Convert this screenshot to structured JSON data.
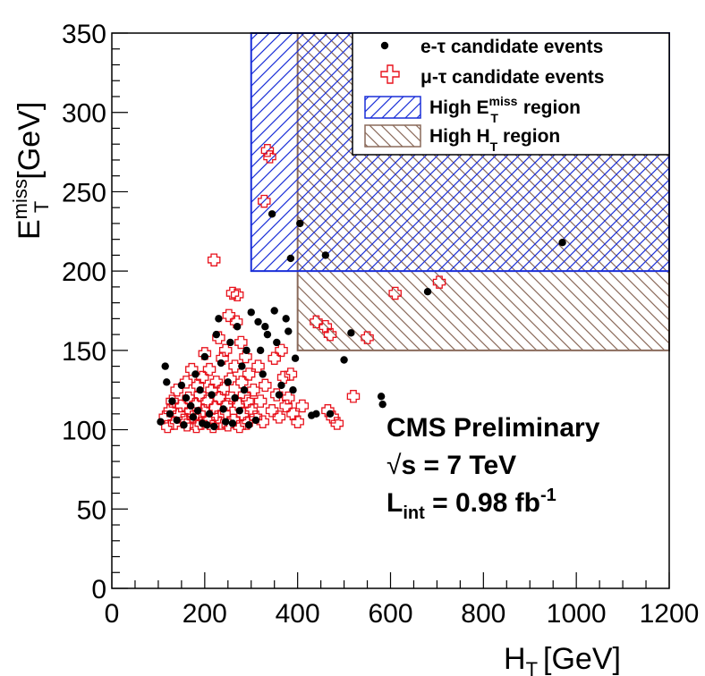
{
  "chart_data": {
    "type": "scatter",
    "title": "",
    "xlabel": {
      "main": "H",
      "sub": "T",
      "unit": "[GeV]"
    },
    "ylabel": {
      "main": "E",
      "sup": "miss",
      "sub": "T",
      "unit": "[GeV]"
    },
    "xlim": [
      0,
      1200
    ],
    "ylim": [
      0,
      350
    ],
    "x_ticks": [
      0,
      200,
      400,
      600,
      800,
      1000,
      1200
    ],
    "y_ticks": [
      0,
      50,
      100,
      150,
      200,
      250,
      300,
      350
    ],
    "x_tick_labels": [
      "0",
      "200",
      "400",
      "600",
      "800",
      "1000",
      "1200"
    ],
    "y_tick_labels": [
      "0",
      "50",
      "100",
      "150",
      "200",
      "250",
      "300",
      "350"
    ],
    "legend_position": "top-right",
    "regions": [
      {
        "name": "High MET region",
        "x": [
          300,
          1200
        ],
        "y": [
          200,
          350
        ],
        "color": "#1a2fd8",
        "hatch": "forward"
      },
      {
        "name": "High HT region",
        "x": [
          400,
          1200
        ],
        "y": [
          150,
          350
        ],
        "color": "#8a6a5a",
        "hatch": "backward"
      }
    ],
    "series": [
      {
        "name": "e-tau candidate events",
        "marker": "dot",
        "color": "#000000",
        "points": [
          [
            105,
            105
          ],
          [
            115,
            140
          ],
          [
            118,
            130
          ],
          [
            125,
            110
          ],
          [
            130,
            118
          ],
          [
            140,
            106
          ],
          [
            150,
            128
          ],
          [
            155,
            103
          ],
          [
            160,
            120
          ],
          [
            170,
            115
          ],
          [
            175,
            108
          ],
          [
            180,
            135
          ],
          [
            185,
            112
          ],
          [
            190,
            125
          ],
          [
            195,
            104
          ],
          [
            200,
            146
          ],
          [
            205,
            103
          ],
          [
            210,
            110
          ],
          [
            215,
            122
          ],
          [
            220,
            102
          ],
          [
            225,
            160
          ],
          [
            230,
            170
          ],
          [
            235,
            142
          ],
          [
            240,
            113
          ],
          [
            245,
            105
          ],
          [
            250,
            130
          ],
          [
            255,
            155
          ],
          [
            260,
            104
          ],
          [
            265,
            120
          ],
          [
            270,
            165
          ],
          [
            275,
            112
          ],
          [
            280,
            140
          ],
          [
            285,
            125
          ],
          [
            290,
            150
          ],
          [
            295,
            103
          ],
          [
            300,
            174
          ],
          [
            310,
            106
          ],
          [
            315,
            168
          ],
          [
            320,
            150
          ],
          [
            325,
            135
          ],
          [
            330,
            165
          ],
          [
            335,
            160
          ],
          [
            345,
            236
          ],
          [
            350,
            175
          ],
          [
            355,
            155
          ],
          [
            360,
            122
          ],
          [
            365,
            128
          ],
          [
            375,
            170
          ],
          [
            380,
            162
          ],
          [
            385,
            208
          ],
          [
            390,
            125
          ],
          [
            395,
            145
          ],
          [
            405,
            230
          ],
          [
            430,
            109
          ],
          [
            440,
            110
          ],
          [
            460,
            210
          ],
          [
            470,
            110
          ],
          [
            500,
            144
          ],
          [
            515,
            161
          ],
          [
            580,
            121
          ],
          [
            583,
            116
          ],
          [
            680,
            187
          ],
          [
            970,
            218
          ]
        ]
      },
      {
        "name": "mu-tau candidate events",
        "marker": "open-cross",
        "color": "#e8121c",
        "points": [
          [
            115,
            108
          ],
          [
            120,
            102
          ],
          [
            125,
            112
          ],
          [
            130,
            118
          ],
          [
            135,
            104
          ],
          [
            140,
            125
          ],
          [
            145,
            110
          ],
          [
            150,
            115
          ],
          [
            155,
            106
          ],
          [
            160,
            130
          ],
          [
            162,
            103
          ],
          [
            165,
            120
          ],
          [
            170,
            112
          ],
          [
            172,
            138
          ],
          [
            175,
            108
          ],
          [
            180,
            116
          ],
          [
            182,
            102
          ],
          [
            185,
            128
          ],
          [
            188,
            110
          ],
          [
            190,
            122
          ],
          [
            192,
            104
          ],
          [
            195,
            133
          ],
          [
            198,
            112
          ],
          [
            200,
            148
          ],
          [
            205,
            118
          ],
          [
            208,
            106
          ],
          [
            210,
            138
          ],
          [
            215,
            125
          ],
          [
            218,
            102
          ],
          [
            220,
            207
          ],
          [
            222,
            114
          ],
          [
            225,
            130
          ],
          [
            228,
            108
          ],
          [
            230,
            158
          ],
          [
            232,
            120
          ],
          [
            235,
            104
          ],
          [
            238,
            145
          ],
          [
            240,
            126
          ],
          [
            242,
            110
          ],
          [
            245,
            150
          ],
          [
            248,
            116
          ],
          [
            250,
            103
          ],
          [
            252,
            172
          ],
          [
            255,
            132
          ],
          [
            258,
            120
          ],
          [
            260,
            186
          ],
          [
            262,
            106
          ],
          [
            265,
            140
          ],
          [
            268,
            168
          ],
          [
            270,
            185
          ],
          [
            272,
            116
          ],
          [
            275,
            102
          ],
          [
            278,
            155
          ],
          [
            280,
            130
          ],
          [
            282,
            110
          ],
          [
            285,
            122
          ],
          [
            288,
            146
          ],
          [
            290,
            104
          ],
          [
            292,
            118
          ],
          [
            295,
            135
          ],
          [
            300,
            112
          ],
          [
            305,
            125
          ],
          [
            310,
            108
          ],
          [
            315,
            140
          ],
          [
            320,
            118
          ],
          [
            325,
            105
          ],
          [
            328,
            244
          ],
          [
            330,
            128
          ],
          [
            335,
            276
          ],
          [
            340,
            272
          ],
          [
            345,
            112
          ],
          [
            350,
            145
          ],
          [
            355,
            122
          ],
          [
            360,
            108
          ],
          [
            365,
            150
          ],
          [
            370,
            133
          ],
          [
            375,
            115
          ],
          [
            380,
            120
          ],
          [
            385,
            135
          ],
          [
            390,
            110
          ],
          [
            400,
            105
          ],
          [
            410,
            115
          ],
          [
            440,
            168
          ],
          [
            460,
            165
          ],
          [
            465,
            112
          ],
          [
            470,
            160
          ],
          [
            475,
            108
          ],
          [
            485,
            104
          ],
          [
            520,
            121
          ],
          [
            550,
            158
          ],
          [
            610,
            186
          ],
          [
            705,
            193
          ]
        ]
      }
    ],
    "legend": [
      {
        "symbol": "dot",
        "text": "e-τ candidate events"
      },
      {
        "symbol": "open-cross",
        "text": "μ-τ candidate events"
      },
      {
        "symbol": "hatch-blue",
        "text": "High E",
        "sup": "miss",
        "sub": "T",
        "tail": " region"
      },
      {
        "symbol": "hatch-brown",
        "text": "High H",
        "sub": "T",
        "tail": " region"
      }
    ],
    "annotations": {
      "line1": "CMS Preliminary",
      "sqrt": "√",
      "line2_s": "s",
      "line2_rest": " = 7 TeV",
      "line3_L": "L",
      "line3_sub": "int",
      "line3_rest": " = 0.98 fb",
      "line3_sup": "-1"
    }
  }
}
